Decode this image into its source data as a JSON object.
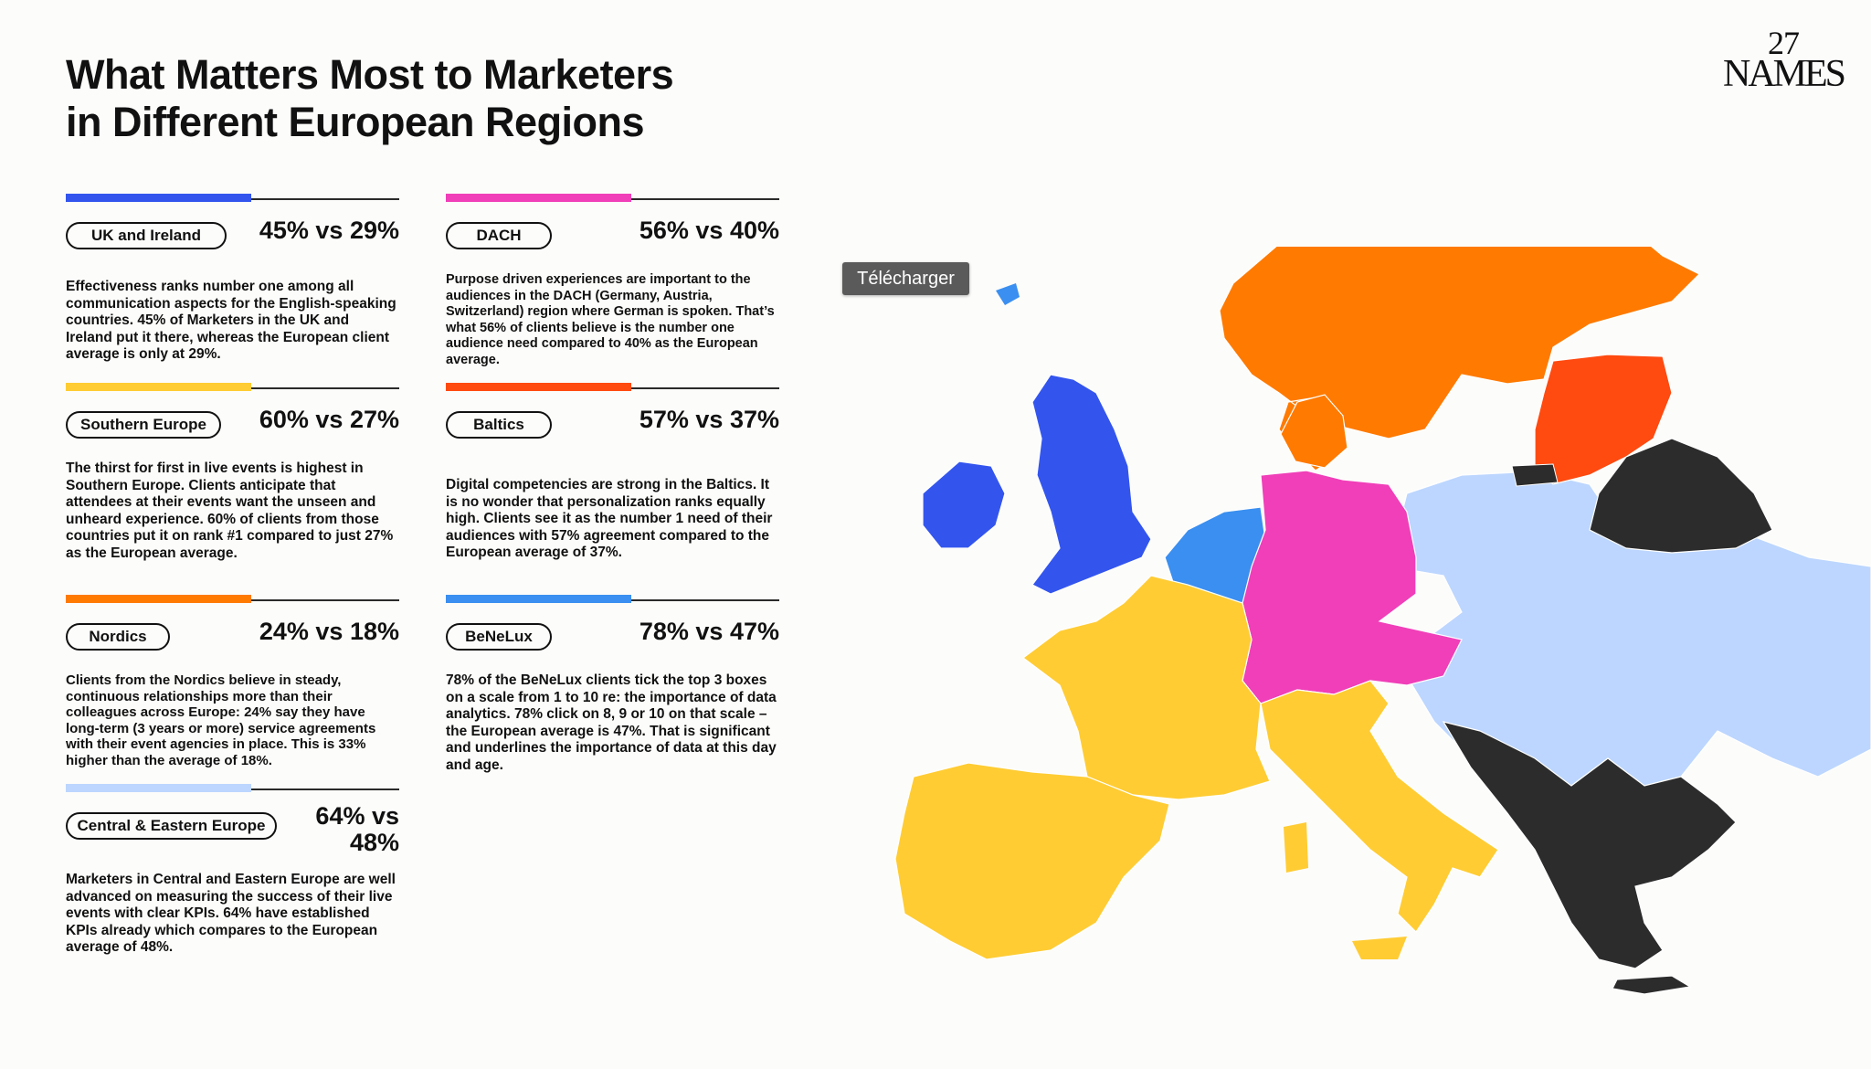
{
  "title": {
    "line1": "What Matters Most to Marketers",
    "line2": "in Different European Regions"
  },
  "logo": {
    "line1": "27",
    "line2": "NAMES"
  },
  "tooltip": {
    "label": "Télécharger"
  },
  "colors": {
    "uk_ireland": "#3355ee",
    "southern_europe": "#ffcc33",
    "nordics": "#ff7a00",
    "central_eastern": "#bcd6ff",
    "dach": "#f03fb8",
    "baltics": "#ff4a10",
    "benelux": "#3a8ff0",
    "other": "#2c2c2c"
  },
  "cards": [
    {
      "id": "uk",
      "label": "UK and Ireland",
      "stat": "45% vs 29%",
      "color": "#3355ee",
      "body": "Effectiveness ranks number one among all communication aspects for the English-speaking countries. 45% of Marketers in the UK and Ireland put it there, whereas the European client average is only at 29%."
    },
    {
      "id": "dach",
      "label": "DACH",
      "stat": "56% vs 40%",
      "color": "#f03fb8",
      "body": "Purpose driven experiences are important to the audiences in the DACH (Germany, Austria, Switzerland) region where German is spoken. That’s what 56% of clients believe is the number one audience need compared to 40% as the European average."
    },
    {
      "id": "southern",
      "label": "Southern Europe",
      "stat": "60% vs 27%",
      "color": "#ffcc33",
      "body": "The thirst for first in live events is highest in Southern Europe. Clients anticipate that attendees at their events want the unseen and unheard experience. 60% of clients from those countries put it on rank #1 compared to just 27% as the European average."
    },
    {
      "id": "baltics",
      "label": "Baltics",
      "stat": "57% vs 37%",
      "color": "#ff4a10",
      "body": "Digital competencies are strong in the Baltics. It is no wonder that personalization ranks equally high. Clients see it as the number 1 need of their audiences with 57% agreement compared to the European average of 37%."
    },
    {
      "id": "nordics",
      "label": "Nordics",
      "stat": "24% vs 18%",
      "color": "#ff7a00",
      "body": "Clients from the Nordics believe in steady, continuous relationships more than their colleagues across Europe: 24% say they have long-term (3 years or more) service agreements with their event agencies in place. This is 33% higher than the average of 18%."
    },
    {
      "id": "benelux",
      "label": "BeNeLux",
      "stat": "78% vs 47%",
      "color": "#3a8ff0",
      "body": "78% of the BeNeLux clients tick the top 3 boxes on a scale from 1 to 10 re: the importance of data analytics. 78% click on 8, 9 or 10 on that scale – the European average is 47%. That is significant and underlines the importance of data at this day and age."
    },
    {
      "id": "cee",
      "label": "Central & Eastern Europe",
      "stat_line1": "64% vs",
      "stat_line2": "48%",
      "color": "#bcd6ff",
      "body": "Marketers in Central and Eastern Europe are well advanced on measuring the success of their live events with clear KPIs. 64% have established KPIs already which compares to the European average of 48%."
    }
  ]
}
